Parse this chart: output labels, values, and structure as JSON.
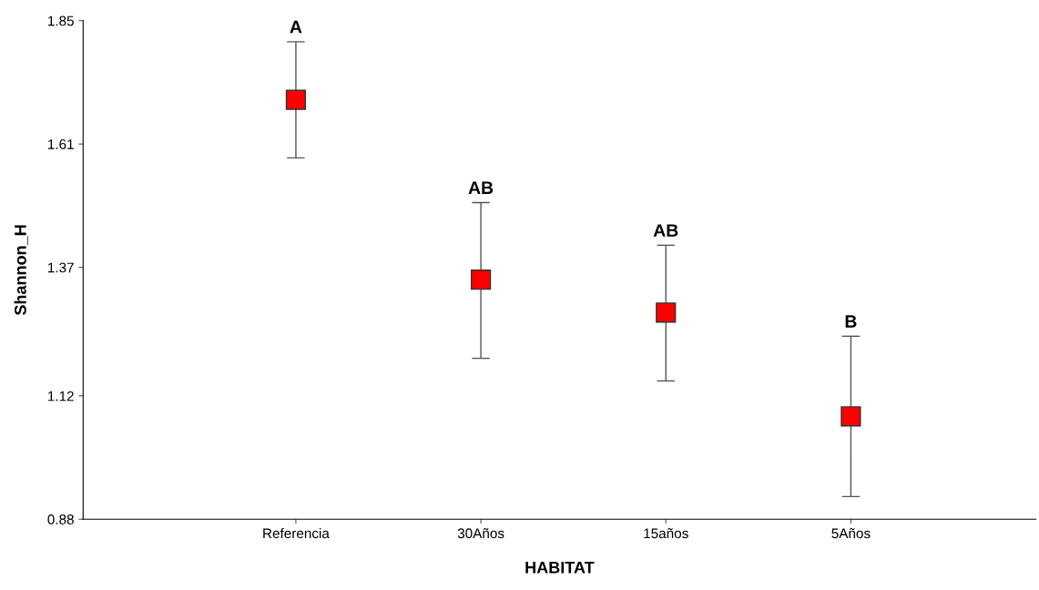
{
  "chart_data": {
    "type": "scatter",
    "xlabel": "HABITAT",
    "ylabel": "Shannon_H",
    "categories": [
      "Referencia",
      "30Años",
      "15años",
      "5Años"
    ],
    "series": [
      {
        "color": "#ff0000",
        "values": [
          1.696,
          1.346,
          1.282,
          1.08
        ],
        "errors": [
          [
            1.583,
            1.809
          ],
          [
            1.193,
            1.496
          ],
          [
            1.149,
            1.413
          ],
          [
            0.924,
            1.236
          ]
        ]
      }
    ],
    "ylim": [
      0.88,
      1.85
    ],
    "yticks": [
      {
        "value": 0.88,
        "label": "0.88"
      },
      {
        "value": 1.12,
        "label": "1.12"
      },
      {
        "value": 1.37,
        "label": "1.37"
      },
      {
        "value": 1.61,
        "label": "1.61"
      },
      {
        "value": 1.85,
        "label": "1.85"
      }
    ],
    "marker": "square",
    "grid": false,
    "annotations": [
      {
        "text": "A",
        "x": "Referencia",
        "y": 1.809
      },
      {
        "text": "AB",
        "x": "30Años",
        "y": 1.496
      },
      {
        "text": "AB",
        "x": "15años",
        "y": 1.413
      },
      {
        "text": "B",
        "x": "5Años",
        "y": 1.236
      }
    ]
  }
}
